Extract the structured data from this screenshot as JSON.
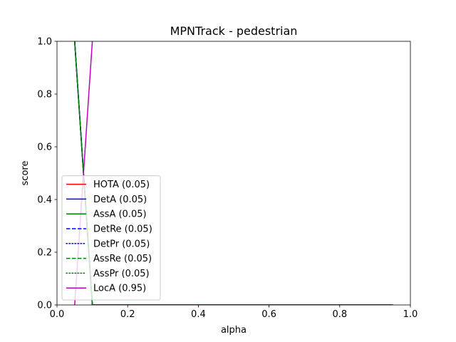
{
  "chart_data": {
    "type": "line",
    "title": "MPNTrack - pedestrian",
    "xlabel": "alpha",
    "ylabel": "score",
    "xlim": [
      0.0,
      1.0
    ],
    "ylim": [
      0.0,
      1.0
    ],
    "xticks": [
      "0.0",
      "0.2",
      "0.4",
      "0.6",
      "0.8",
      "1.0"
    ],
    "yticks": [
      "0.0",
      "0.2",
      "0.4",
      "0.6",
      "0.8",
      "1.0"
    ],
    "grid": false,
    "legend_position": "lower-left",
    "series": [
      {
        "name": "HOTA (0.05)",
        "color": "#ff0000",
        "linestyle": "solid",
        "x": [
          0.05,
          0.1,
          0.15,
          0.2,
          0.25,
          0.3,
          0.35,
          0.4,
          0.45,
          0.5,
          0.55,
          0.6,
          0.65,
          0.7,
          0.75,
          0.8,
          0.85,
          0.9,
          0.95
        ],
        "y": [
          1.0,
          0.0,
          0.0,
          0.0,
          0.0,
          0.0,
          0.0,
          0.0,
          0.0,
          0.0,
          0.0,
          0.0,
          0.0,
          0.0,
          0.0,
          0.0,
          0.0,
          0.0,
          0.0
        ]
      },
      {
        "name": "DetA (0.05)",
        "color": "#0000ff",
        "linestyle": "solid",
        "x": [
          0.05,
          0.1,
          0.15,
          0.2,
          0.25,
          0.3,
          0.35,
          0.4,
          0.45,
          0.5,
          0.55,
          0.6,
          0.65,
          0.7,
          0.75,
          0.8,
          0.85,
          0.9,
          0.95
        ],
        "y": [
          1.0,
          0.0,
          0.0,
          0.0,
          0.0,
          0.0,
          0.0,
          0.0,
          0.0,
          0.0,
          0.0,
          0.0,
          0.0,
          0.0,
          0.0,
          0.0,
          0.0,
          0.0,
          0.0
        ]
      },
      {
        "name": "AssA (0.05)",
        "color": "#008000",
        "linestyle": "solid",
        "x": [
          0.05,
          0.1,
          0.15,
          0.2,
          0.25,
          0.3,
          0.35,
          0.4,
          0.45,
          0.5,
          0.55,
          0.6,
          0.65,
          0.7,
          0.75,
          0.8,
          0.85,
          0.9,
          0.95
        ],
        "y": [
          1.0,
          0.0,
          0.0,
          0.0,
          0.0,
          0.0,
          0.0,
          0.0,
          0.0,
          0.0,
          0.0,
          0.0,
          0.0,
          0.0,
          0.0,
          0.0,
          0.0,
          0.0,
          0.0
        ]
      },
      {
        "name": "DetRe (0.05)",
        "color": "#0000ff",
        "linestyle": "dashed",
        "x": [
          0.05,
          0.1,
          0.15,
          0.2,
          0.25,
          0.3,
          0.35,
          0.4,
          0.45,
          0.5,
          0.55,
          0.6,
          0.65,
          0.7,
          0.75,
          0.8,
          0.85,
          0.9,
          0.95
        ],
        "y": [
          1.0,
          0.0,
          0.0,
          0.0,
          0.0,
          0.0,
          0.0,
          0.0,
          0.0,
          0.0,
          0.0,
          0.0,
          0.0,
          0.0,
          0.0,
          0.0,
          0.0,
          0.0,
          0.0
        ]
      },
      {
        "name": "DetPr (0.05)",
        "color": "#0000ff",
        "linestyle": "dotted",
        "x": [
          0.05,
          0.1,
          0.15,
          0.2,
          0.25,
          0.3,
          0.35,
          0.4,
          0.45,
          0.5,
          0.55,
          0.6,
          0.65,
          0.7,
          0.75,
          0.8,
          0.85,
          0.9,
          0.95
        ],
        "y": [
          1.0,
          0.0,
          0.0,
          0.0,
          0.0,
          0.0,
          0.0,
          0.0,
          0.0,
          0.0,
          0.0,
          0.0,
          0.0,
          0.0,
          0.0,
          0.0,
          0.0,
          0.0,
          0.0
        ]
      },
      {
        "name": "AssRe (0.05)",
        "color": "#008000",
        "linestyle": "dashed",
        "x": [
          0.05,
          0.1,
          0.15,
          0.2,
          0.25,
          0.3,
          0.35,
          0.4,
          0.45,
          0.5,
          0.55,
          0.6,
          0.65,
          0.7,
          0.75,
          0.8,
          0.85,
          0.9,
          0.95
        ],
        "y": [
          1.0,
          0.0,
          0.0,
          0.0,
          0.0,
          0.0,
          0.0,
          0.0,
          0.0,
          0.0,
          0.0,
          0.0,
          0.0,
          0.0,
          0.0,
          0.0,
          0.0,
          0.0,
          0.0
        ]
      },
      {
        "name": "AssPr (0.05)",
        "color": "#008000",
        "linestyle": "dotted",
        "x": [
          0.05,
          0.1,
          0.15,
          0.2,
          0.25,
          0.3,
          0.35,
          0.4,
          0.45,
          0.5,
          0.55,
          0.6,
          0.65,
          0.7,
          0.75,
          0.8,
          0.85,
          0.9,
          0.95
        ],
        "y": [
          1.0,
          0.0,
          0.0,
          0.0,
          0.0,
          0.0,
          0.0,
          0.0,
          0.0,
          0.0,
          0.0,
          0.0,
          0.0,
          0.0,
          0.0,
          0.0,
          0.0,
          0.0,
          0.0
        ]
      },
      {
        "name": "LocA (0.95)",
        "color": "#bf00bf",
        "linestyle": "solid",
        "x": [
          0.05,
          0.1
        ],
        "y": [
          0.0,
          1.0
        ]
      }
    ]
  }
}
